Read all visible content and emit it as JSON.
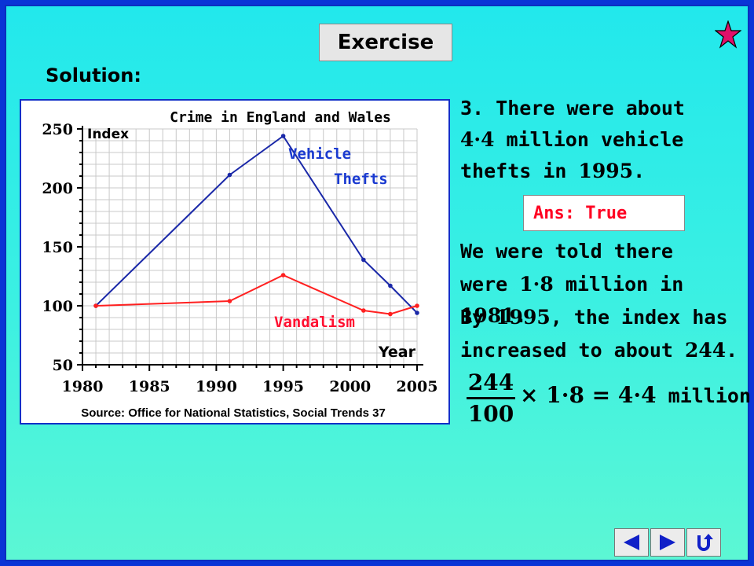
{
  "header": {
    "tag": "Exercise",
    "solution_label": "Solution:"
  },
  "chart_data": {
    "type": "line",
    "title": "Crime in England and Wales",
    "xlabel": "Year",
    "ylabel": "Index",
    "xlim": [
      1980,
      2005
    ],
    "ylim": [
      50,
      250
    ],
    "xticks": [
      "1980",
      "1985",
      "1990",
      "1995",
      "2000",
      "2005"
    ],
    "yticks": [
      "50",
      "100",
      "150",
      "200",
      "250"
    ],
    "series": [
      {
        "name": "Vehicle Thefts",
        "color": "#1a28a8",
        "points": [
          [
            1981,
            100
          ],
          [
            1991,
            211
          ],
          [
            1995,
            244
          ],
          [
            2001,
            139
          ],
          [
            2003,
            117
          ],
          [
            2005,
            94
          ]
        ]
      },
      {
        "name": "Vandalism",
        "color": "#ff2020",
        "points": [
          [
            1981,
            100
          ],
          [
            1991,
            104
          ],
          [
            1995,
            126
          ],
          [
            2001,
            96
          ],
          [
            2003,
            93
          ],
          [
            2005,
            100
          ]
        ]
      }
    ],
    "label_vehicle_1": "Vehicle",
    "label_vehicle_2": "Thefts",
    "label_vandalism": "Vandalism",
    "source": "Source: Office for National Statistics, Social Trends 37",
    "grid": true
  },
  "question": {
    "line1": "3. There were about",
    "line2_num": "4·4",
    "line2_text": " million vehicle",
    "line3_text": "thefts in ",
    "line3_num": "1995",
    "line3_end": "."
  },
  "answer": "Ans: True",
  "explanation": {
    "l1": "We were told there",
    "l2a": "were ",
    "l2n": "1·8",
    "l2b": " million in ",
    "l2y": "1981",
    "l2c": ".",
    "l3a": "By ",
    "l3y": "1995",
    "l3b": ", the index has",
    "l4a": "increased to about ",
    "l4n": "244",
    "l4c": "."
  },
  "calc": {
    "numerator": "244",
    "denominator": "100",
    "times": "× 1·8",
    "equals": " = 4·4",
    "unit": " million"
  },
  "nav": {
    "back_icon": "left-triangle",
    "next_icon": "right-triangle",
    "return_icon": "u-turn-arrow"
  }
}
